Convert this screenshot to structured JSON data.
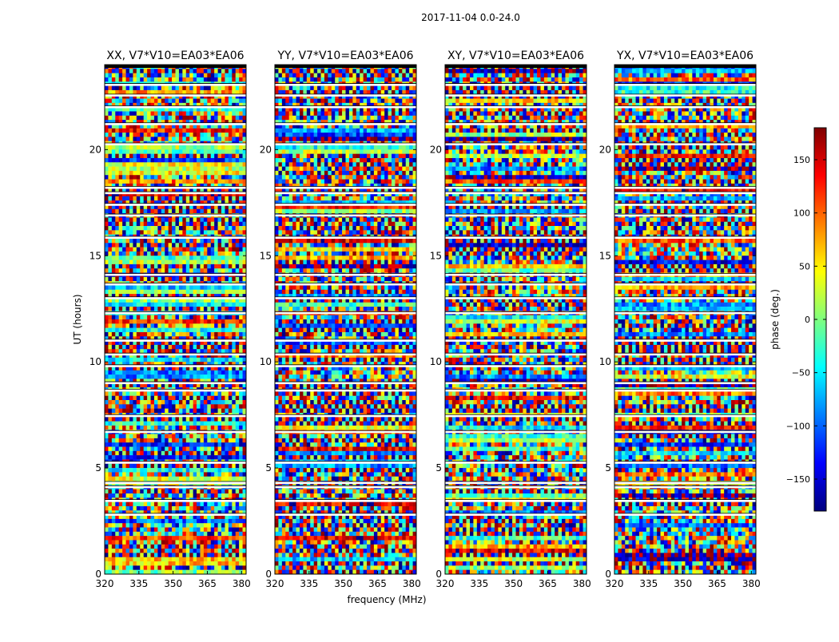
{
  "figure": {
    "suptitle": "2017-11-04 0.0-24.0",
    "xlabel": "frequency (MHz)",
    "ylabel": "UT (hours)"
  },
  "colorbar": {
    "label": "phase (deg.)",
    "range": [
      -180,
      180
    ],
    "ticks": [
      150,
      100,
      50,
      0,
      -50,
      -100,
      -150
    ],
    "tick_labels": [
      "150",
      "100",
      "50",
      "0",
      "−50",
      "−100",
      "−150"
    ],
    "colormap": [
      "#00007f",
      "#0000ff",
      "#007fff",
      "#00ffff",
      "#7fff7f",
      "#ffff00",
      "#ff7f00",
      "#ff0000",
      "#7f0000"
    ]
  },
  "chart_data": {
    "type": "heatmap",
    "title": "2017-11-04 0.0-24.0",
    "xlabel": "frequency (MHz)",
    "ylabel": "UT (hours)",
    "xlim": [
      320,
      382
    ],
    "ylim": [
      0,
      24
    ],
    "xticks": [
      320,
      335,
      350,
      365,
      380
    ],
    "xtick_labels": [
      "320",
      "335",
      "350",
      "365",
      "380"
    ],
    "yticks": [
      0,
      5,
      10,
      15,
      20
    ],
    "ytick_labels": [
      "0",
      "5",
      "10",
      "15",
      "20"
    ],
    "value_label": "phase (deg.)",
    "value_range": [
      -180,
      180
    ],
    "panels": [
      {
        "title": "XX, V7*V10=EA03*EA06",
        "polarization": "XX",
        "seed": 11
      },
      {
        "title": "YY, V7*V10=EA03*EA06",
        "polarization": "YY",
        "seed": 23
      },
      {
        "title": "XY, V7*V10=EA03*EA06",
        "polarization": "XY",
        "seed": 37
      },
      {
        "title": "YX, V7*V10=EA03*EA06",
        "polarization": "YX",
        "seed": 53
      }
    ],
    "flagged_rows_ut": [
      2.75,
      3.4,
      4.05,
      4.25,
      5.2,
      6.65,
      7.4,
      8.6,
      8.95,
      9.75,
      10.3,
      10.95,
      12.25,
      12.95,
      13.6,
      14.05,
      15.8,
      16.85,
      17.35,
      17.9,
      18.15,
      20.2,
      21.15,
      21.95,
      22.5,
      23.0,
      24.0
    ]
  }
}
